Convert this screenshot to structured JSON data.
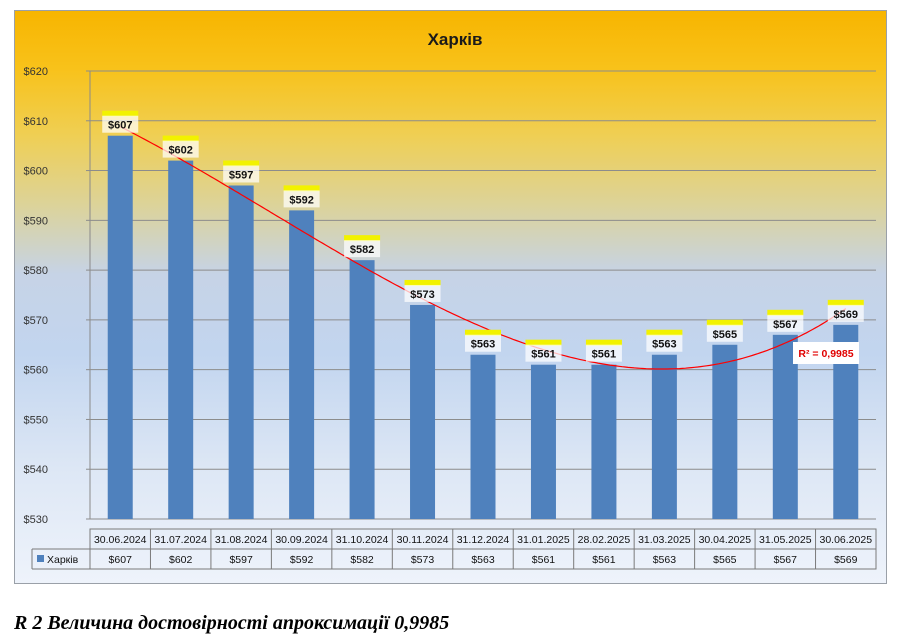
{
  "chart_data": {
    "type": "bar",
    "title": "Харків",
    "categories": [
      "30.06.2024",
      "31.07.2024",
      "31.08.2024",
      "30.09.2024",
      "31.10.2024",
      "30.11.2024",
      "31.12.2024",
      "31.01.2025",
      "28.02.2025",
      "31.03.2025",
      "30.04.2025",
      "31.05.2025",
      "30.06.2025"
    ],
    "series": [
      {
        "name": "Харків",
        "values": [
          607,
          602,
          597,
          592,
          582,
          573,
          563,
          561,
          561,
          563,
          565,
          567,
          569
        ],
        "labels": [
          "$607",
          "$602",
          "$597",
          "$592",
          "$582",
          "$573",
          "$563",
          "$561",
          "$561",
          "$563",
          "$565",
          "$567",
          "$569"
        ],
        "color": "#4f81bd"
      }
    ],
    "ylim": [
      530,
      620
    ],
    "ytick_step": 10,
    "ytick_labels": [
      "$530",
      "$540",
      "$550",
      "$560",
      "$570",
      "$580",
      "$590",
      "$600",
      "$610",
      "$620"
    ],
    "grid": true,
    "trendline": {
      "type": "polynomial",
      "color": "#ff0000",
      "r2_label": "R² = 0,9985"
    },
    "data_table": true,
    "xlabel": "",
    "ylabel": ""
  },
  "caption": "R 2 Величина достовірності апроксимації 0,9985"
}
